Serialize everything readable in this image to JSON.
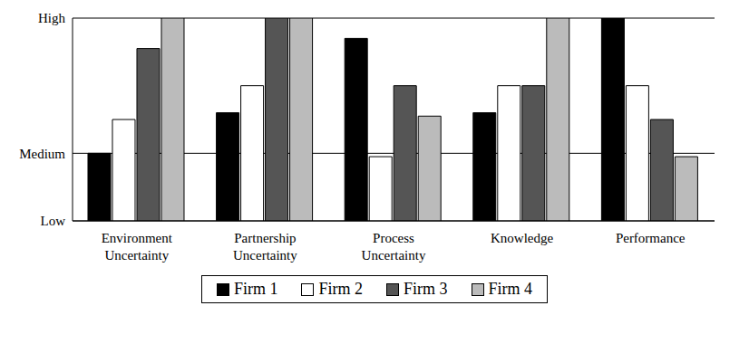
{
  "chart_data": {
    "type": "bar",
    "categories": [
      "Environment Uncertainty",
      "Partnership Uncertainty",
      "Process Uncertainty",
      "Knowledge",
      "Performance"
    ],
    "series": [
      {
        "name": "Firm 1",
        "color": "#000000",
        "values": [
          1.0,
          1.6,
          2.7,
          1.6,
          3.0
        ]
      },
      {
        "name": "Firm 2",
        "color": "#ffffff",
        "values": [
          1.5,
          2.0,
          0.95,
          2.0,
          2.0
        ]
      },
      {
        "name": "Firm 3",
        "color": "#555555",
        "values": [
          2.55,
          3.0,
          2.0,
          2.0,
          1.5
        ]
      },
      {
        "name": "Firm 4",
        "color": "#bbbbbb",
        "values": [
          3.0,
          3.0,
          1.55,
          3.0,
          0.95
        ]
      }
    ],
    "ylim": [
      0,
      3
    ],
    "yticks": [
      {
        "value": 0,
        "label": "Low"
      },
      {
        "value": 1,
        "label": "Medium"
      },
      {
        "value": 3,
        "label": "High"
      }
    ],
    "grid": true,
    "legend": "bottom"
  }
}
